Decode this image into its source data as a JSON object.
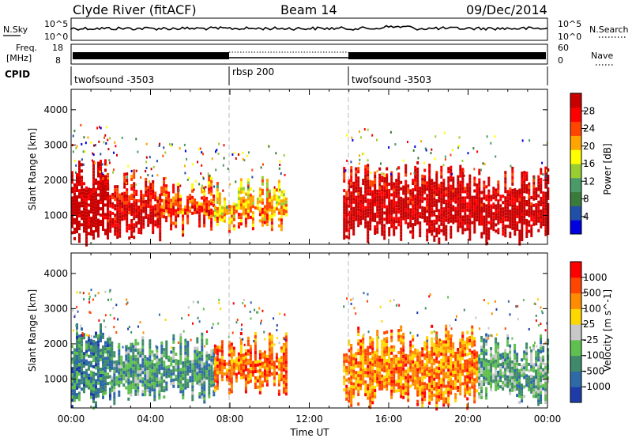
{
  "header": {
    "station": "Clyde River (fitACF)",
    "beam": "Beam 14",
    "date": "09/Dec/2014"
  },
  "top_panels": {
    "nsky_label": "N.Sky",
    "nsearch_label": "N.Search",
    "noise_ticks_left": [
      "10^5",
      "10^0"
    ],
    "noise_ticks_right": [
      "10^5",
      "10^0"
    ],
    "freq_label_line1": "Freq.",
    "freq_label_line2": "[MHz]",
    "freq_ticks": [
      "18",
      "8"
    ],
    "nave_label": "Nave",
    "nave_ticks": [
      "60",
      "0"
    ],
    "cpid_label": "CPID",
    "cpid_segments": [
      {
        "label": "twofsound -3503",
        "start_hour": 0,
        "end_hour": 8
      },
      {
        "label": "rbsp 200",
        "start_hour": 8,
        "end_hour": 14
      },
      {
        "label": "twofsound -3503",
        "start_hour": 14,
        "end_hour": 24
      }
    ]
  },
  "chart_data": [
    {
      "type": "heatmap",
      "title": "",
      "xlabel": "",
      "ylabel": "Slant Range [km]",
      "xlim": [
        0,
        24
      ],
      "ylim": [
        180,
        4580
      ],
      "yticks": [
        1000,
        2000,
        3000,
        4000
      ],
      "colorbar_label": "Power [dB]",
      "colorbar_ticks": [
        "28",
        "24",
        "20",
        "16",
        "12",
        "8",
        "4"
      ],
      "colors": [
        "#0000e0",
        "#1f4fa8",
        "#3a7a3a",
        "#4a9a6a",
        "#9acd32",
        "#ffff00",
        "#ffa500",
        "#ff4500",
        "#ff0000",
        "#c80000"
      ],
      "segments": [
        {
          "t0": 0.0,
          "t1": 1.8,
          "r0": 500,
          "r1": 2200,
          "level": 0.95
        },
        {
          "t0": 1.8,
          "t1": 4.5,
          "r0": 650,
          "r1": 1900,
          "level": 0.85
        },
        {
          "t0": 4.5,
          "t1": 7.2,
          "r0": 750,
          "r1": 1700,
          "level": 0.7
        },
        {
          "t0": 7.2,
          "t1": 10.8,
          "r0": 900,
          "r1": 1700,
          "level": 0.55
        },
        {
          "t0": 13.7,
          "t1": 18.0,
          "r0": 600,
          "r1": 2100,
          "level": 0.9
        },
        {
          "t0": 18.0,
          "t1": 24.0,
          "r0": 500,
          "r1": 2000,
          "level": 0.92
        }
      ]
    },
    {
      "type": "heatmap",
      "title": "",
      "xlabel": "Time UT",
      "ylabel": "Slant Range [km]",
      "xlim": [
        0,
        24
      ],
      "ylim": [
        180,
        4580
      ],
      "xticks": [
        "00:00",
        "04:00",
        "08:00",
        "12:00",
        "16:00",
        "20:00",
        "00:00"
      ],
      "yticks": [
        1000,
        2000,
        3000,
        4000
      ],
      "colorbar_label": "Velocity [m s^-1]",
      "colorbar_ticks": [
        "1000",
        "500",
        "100",
        "25",
        "-25",
        "-100",
        "-500",
        "-1000"
      ],
      "colors": [
        "#1e3ca8",
        "#2f6aa8",
        "#3f8a6a",
        "#5fbf4f",
        "#c8c8c8",
        "#ffd700",
        "#ff8c00",
        "#ff4500",
        "#ff0000"
      ],
      "segments": [
        {
          "t0": 0.0,
          "t1": 2.0,
          "r0": 500,
          "r1": 2200,
          "level": 0.25
        },
        {
          "t0": 2.0,
          "t1": 7.2,
          "r0": 650,
          "r1": 1900,
          "level": 0.3
        },
        {
          "t0": 7.2,
          "t1": 10.8,
          "r0": 850,
          "r1": 1900,
          "level": 0.78
        },
        {
          "t0": 13.7,
          "t1": 20.5,
          "r0": 500,
          "r1": 2100,
          "level": 0.75
        },
        {
          "t0": 20.5,
          "t1": 24.0,
          "r0": 600,
          "r1": 1900,
          "level": 0.35
        }
      ]
    }
  ]
}
